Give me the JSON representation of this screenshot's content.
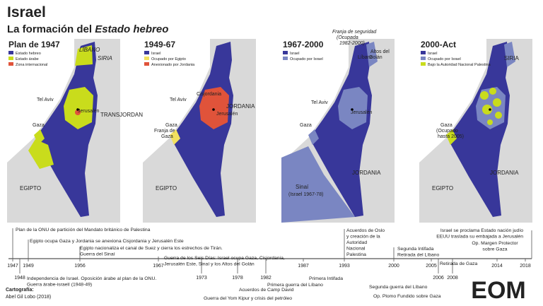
{
  "header": {
    "title": "Israel",
    "subtitle": "La formación del",
    "subtitle_italic": "Estado hebreo"
  },
  "maps": [
    {
      "title": "Plan de 1947",
      "legend": [
        {
          "label": "Estado hebreo",
          "color": "#38379a"
        },
        {
          "label": "Estado árabe",
          "color": "#c9dc1c"
        },
        {
          "label": "Zona internacional",
          "color": "#e0533a"
        }
      ],
      "places": [
        "LÍBANO",
        "SIRIA",
        "TRANSJORDANIA",
        "Tel Aviv",
        "Jerusalén",
        "Gaza",
        "EGIPTO"
      ]
    },
    {
      "title": "1949-67",
      "legend": [
        {
          "label": "Israel",
          "color": "#38379a"
        },
        {
          "label": "Ocupado por Egipto",
          "color": "#f2e060"
        },
        {
          "label": "Anexionado por Jordania",
          "color": "#e0533a"
        }
      ],
      "places": [
        "Tel Aviv",
        "JORDANIA",
        "Cisjordania",
        "Jerusalén",
        "Gaza",
        "Franja de",
        "Gaza",
        "EGIPTO"
      ]
    },
    {
      "title": "1967-2000",
      "legend": [
        {
          "label": "Israel",
          "color": "#38379a"
        },
        {
          "label": "Ocupado por Israel",
          "color": "#7a86c2"
        }
      ],
      "places": [
        "Franja de seguridad",
        "(Ocupada",
        "1982-2000)",
        "Altos del",
        "Golán",
        "Líbano",
        "Tel Aviv",
        "Jerusalén",
        "Gaza",
        "JORDANIA",
        "Sinaí",
        "(Israel 1967-78)"
      ]
    },
    {
      "title": "2000-Act",
      "legend": [
        {
          "label": "Israel",
          "color": "#38379a"
        },
        {
          "label": "Ocupado por Israel",
          "color": "#7a86c2"
        },
        {
          "label": "Bajo la Autoridad Nacional Palestina",
          "color": "#c9dc1c"
        }
      ],
      "places": [
        "SIRIA",
        "Gaza",
        "(Ocupado",
        "hasta 2005)",
        "JORDANIA",
        "EGIPTO"
      ]
    }
  ],
  "timeline": {
    "years": [
      "1947",
      "1949",
      "1956",
      "1967",
      "1987",
      "1993",
      "2000",
      "2005",
      "2014",
      "2018",
      "1948",
      "1973",
      "1978",
      "1982",
      "2006",
      "2008"
    ],
    "events": [
      [
        "Plan de la ONU de partición del Mandato británico de Palestina"
      ],
      [
        "Egipto ocupa Gaza y Jordania se anexiona Cisjordania y Jerusalén Este"
      ],
      [
        "Egipto nacionaliza el canal de Suez y cierra los estrechos de Tirán.",
        "Guerra del Sinaí"
      ],
      [
        "Guerra de los Seis Días: Israel ocupa Gaza, Cisjordania,",
        "Jerusalén Este, Sinaí y los Altos del Golán"
      ],
      [
        "Acuerdos de Oslo",
        "y creación de la",
        "Autoridad",
        "Nacional",
        "Palestina"
      ],
      [
        "Segunda Intifada",
        "Retirada del Líbano"
      ],
      [
        "Israel se proclama Estado nación judío",
        "EEUU traslada su embajada a Jerusalén"
      ],
      [
        "Op. Margen Protector",
        "sobre Gaza"
      ],
      [
        "Retirada de Gaza"
      ],
      [
        "Independencia de Israel. Oposición árabe al plan de la ONU.",
        "Guerra árabe-israelí (1948-49)"
      ],
      [
        "Guerra del Yom Kipur y crisis del petróleo"
      ],
      [
        "Acuerdos de Camp David"
      ],
      [
        "Primera guerra del Líbano"
      ],
      [
        "Primera Intifada"
      ],
      [
        "Segunda guerra del Líbano"
      ],
      [
        "Op. Plomo Fundido sobre Gaza"
      ]
    ]
  },
  "credits": {
    "label": "Cartografía:",
    "author": "Abel Gil Lobo (2018)"
  },
  "logo": "EOM"
}
